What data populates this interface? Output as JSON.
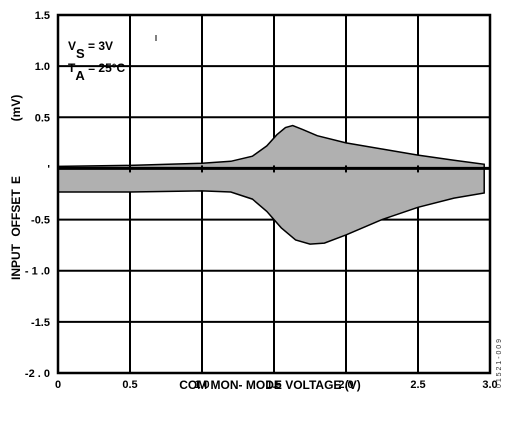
{
  "chart_data": {
    "type": "area",
    "title": "",
    "xlabel": "COM MON- MODE VOLTAGE (V)",
    "ylabel_parts": [
      "INPUT",
      "OFFSET",
      "E",
      "(mV)"
    ],
    "xlim": [
      0,
      3.0
    ],
    "ylim": [
      -2.0,
      1.5
    ],
    "x_ticks": [
      {
        "value": 0,
        "label": "0"
      },
      {
        "value": 0.5,
        "label": "0.5"
      },
      {
        "value": 1.0,
        "label": "1.0"
      },
      {
        "value": 1.5,
        "label": "1.5"
      },
      {
        "value": 2.0,
        "label": "2.0"
      },
      {
        "value": 2.5,
        "label": "2.5"
      },
      {
        "value": 3.0,
        "label": "3.0"
      }
    ],
    "y_ticks": [
      {
        "value": 1.5,
        "label": "1.5"
      },
      {
        "value": 1.0,
        "label": "1.0"
      },
      {
        "value": 0.5,
        "label": "0.5"
      },
      {
        "value": 0,
        "label": "'"
      },
      {
        "value": -0.5,
        "label": "-0.5"
      },
      {
        "value": -1.0,
        "label": "- 1 .0"
      },
      {
        "value": -1.5,
        "label": "-1.5"
      },
      {
        "value": -2.0,
        "label": "-2 . 0"
      }
    ],
    "grid": true,
    "annotations": [
      {
        "label": "V",
        "sub": "S",
        "value": " = 3V"
      },
      {
        "label": "T",
        "sub": "A",
        "value": " = 25°C"
      }
    ],
    "series": [
      {
        "fill": "#b0b0b0",
        "upper": [
          {
            "x": 0.0,
            "y": 0.02
          },
          {
            "x": 0.5,
            "y": 0.03
          },
          {
            "x": 1.0,
            "y": 0.05
          },
          {
            "x": 1.2,
            "y": 0.07
          },
          {
            "x": 1.35,
            "y": 0.12
          },
          {
            "x": 1.45,
            "y": 0.22
          },
          {
            "x": 1.52,
            "y": 0.33
          },
          {
            "x": 1.58,
            "y": 0.4
          },
          {
            "x": 1.63,
            "y": 0.42
          },
          {
            "x": 1.7,
            "y": 0.38
          },
          {
            "x": 1.8,
            "y": 0.32
          },
          {
            "x": 2.0,
            "y": 0.25
          },
          {
            "x": 2.25,
            "y": 0.19
          },
          {
            "x": 2.5,
            "y": 0.13
          },
          {
            "x": 2.75,
            "y": 0.08
          },
          {
            "x": 2.96,
            "y": 0.04
          }
        ],
        "lower": [
          {
            "x": 0.0,
            "y": -0.23
          },
          {
            "x": 0.5,
            "y": -0.23
          },
          {
            "x": 1.0,
            "y": -0.22
          },
          {
            "x": 1.2,
            "y": -0.23
          },
          {
            "x": 1.35,
            "y": -0.3
          },
          {
            "x": 1.45,
            "y": -0.42
          },
          {
            "x": 1.55,
            "y": -0.58
          },
          {
            "x": 1.65,
            "y": -0.7
          },
          {
            "x": 1.75,
            "y": -0.74
          },
          {
            "x": 1.85,
            "y": -0.73
          },
          {
            "x": 2.0,
            "y": -0.65
          },
          {
            "x": 2.25,
            "y": -0.5
          },
          {
            "x": 2.5,
            "y": -0.38
          },
          {
            "x": 2.75,
            "y": -0.29
          },
          {
            "x": 2.96,
            "y": -0.24
          }
        ]
      }
    ]
  },
  "figure_id": "0 1 5 2 1 - 0 0 9"
}
